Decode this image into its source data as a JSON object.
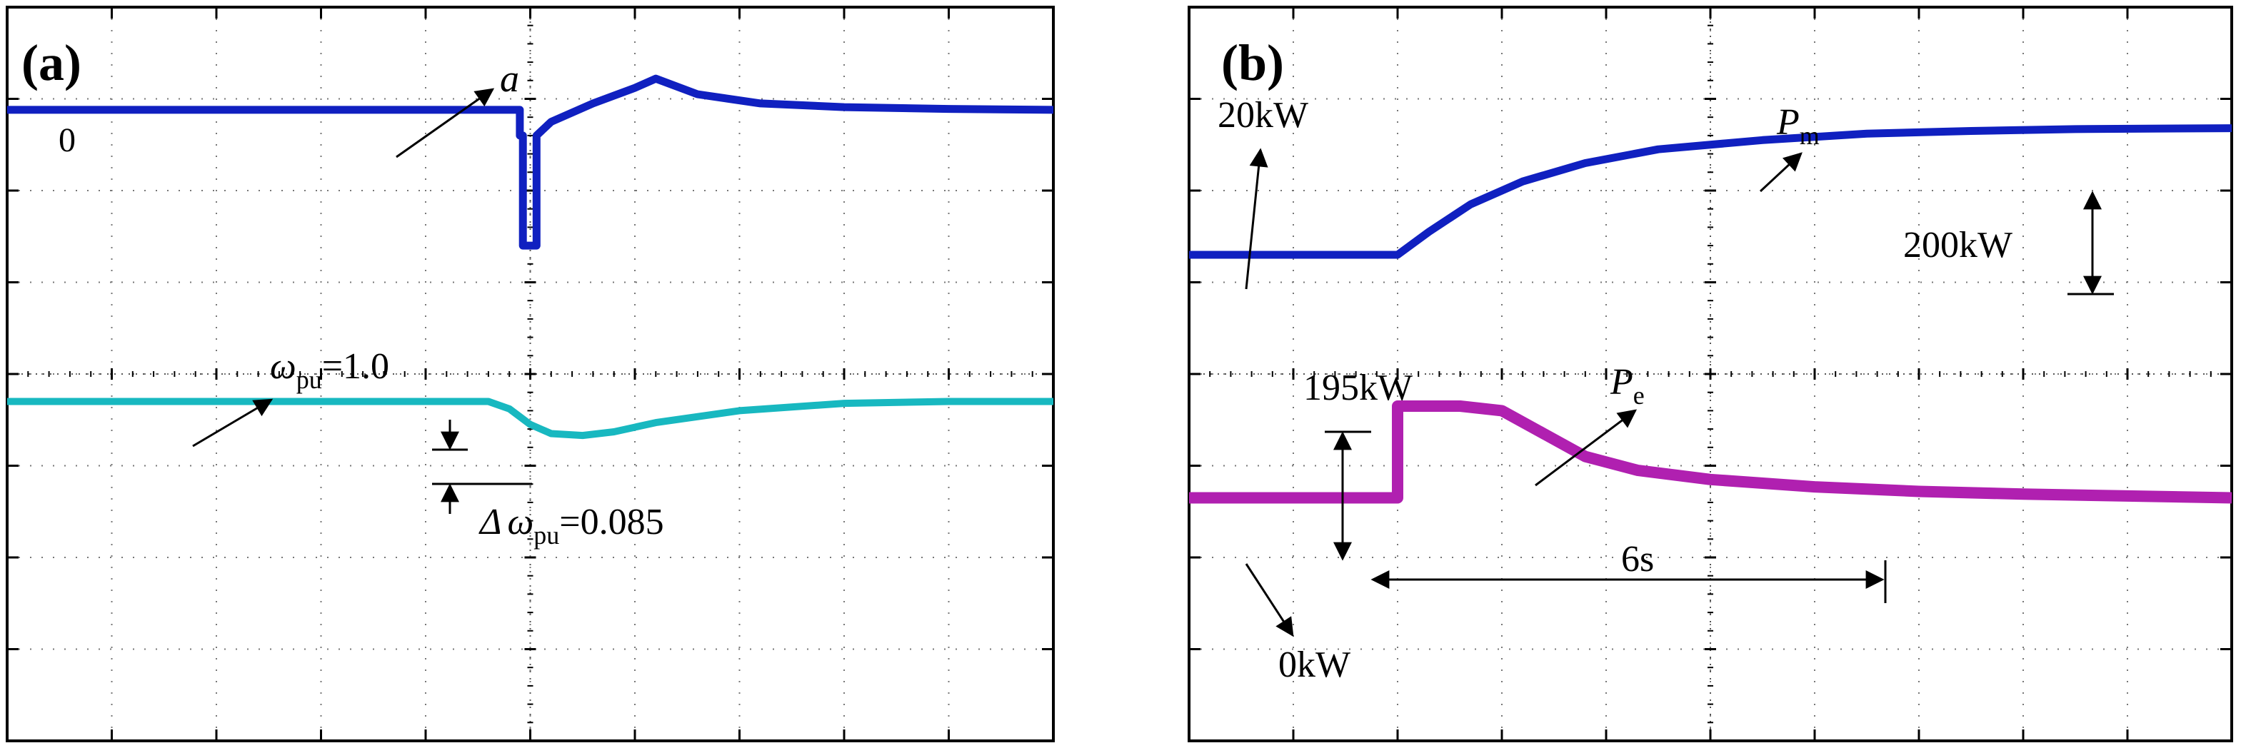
{
  "chart_data": [
    {
      "type": "line",
      "panel_label": "(a)",
      "divisions": {
        "x": 10,
        "y": 8
      },
      "grid": "dotted",
      "ylim": [
        0,
        8
      ],
      "series": [
        {
          "name": "a",
          "color": "#1020c0",
          "x": [
            0,
            4.9,
            4.9,
            4.93,
            4.93,
            5.06,
            5.06,
            5.2,
            5.6,
            6.0,
            6.2,
            6.6,
            7.2,
            8.0,
            9.0,
            10.0
          ],
          "y": [
            6.88,
            6.88,
            6.6,
            6.6,
            5.4,
            5.4,
            6.6,
            6.75,
            6.95,
            7.12,
            7.22,
            7.05,
            6.95,
            6.91,
            6.89,
            6.88
          ]
        },
        {
          "name": "ω_pu",
          "color": "#18b8c0",
          "x": [
            0,
            4.6,
            4.8,
            5.0,
            5.2,
            5.5,
            5.8,
            6.2,
            7.0,
            8.0,
            9.0,
            10.0
          ],
          "y": [
            3.7,
            3.7,
            3.62,
            3.45,
            3.35,
            3.33,
            3.37,
            3.47,
            3.6,
            3.68,
            3.7,
            3.7
          ]
        }
      ],
      "annotations": {
        "zero_label": "0",
        "a_label": "a",
        "omega_label": {
          "base": "ω",
          "sub": "pu",
          "rest": "=1.0"
        },
        "delta_label": {
          "base": "Δ",
          "base2": "ω",
          "sub": "pu",
          "rest": "=0.085"
        }
      }
    },
    {
      "type": "line",
      "panel_label": "(b)",
      "divisions": {
        "x": 10,
        "y": 8
      },
      "grid": "dotted",
      "ylim": [
        0,
        8
      ],
      "series": [
        {
          "name": "P_m",
          "color": "#1020c0",
          "x": [
            0,
            2.0,
            2.3,
            2.7,
            3.2,
            3.8,
            4.5,
            5.5,
            6.5,
            7.5,
            8.5,
            10.0
          ],
          "y": [
            5.3,
            5.3,
            5.55,
            5.85,
            6.1,
            6.3,
            6.45,
            6.55,
            6.62,
            6.65,
            6.67,
            6.68
          ]
        },
        {
          "name": "P_e",
          "color": "#b020b0",
          "x": [
            0,
            2.0,
            2.0,
            2.6,
            3.0,
            3.4,
            3.8,
            4.3,
            5.0,
            6.0,
            7.0,
            8.0,
            9.0,
            10.0
          ],
          "y": [
            2.65,
            2.65,
            3.65,
            3.65,
            3.6,
            3.35,
            3.1,
            2.95,
            2.85,
            2.77,
            2.72,
            2.69,
            2.67,
            2.65
          ]
        }
      ],
      "annotations": {
        "kw20_label": "20kW",
        "pm_label": {
          "base": "P",
          "sub": "m"
        },
        "kw200_label": "200kW",
        "kw195_label": "195kW",
        "pe_label": {
          "base": "P",
          "sub": "e"
        },
        "kw0_label": "0kW",
        "s6_label": "6s"
      }
    }
  ]
}
